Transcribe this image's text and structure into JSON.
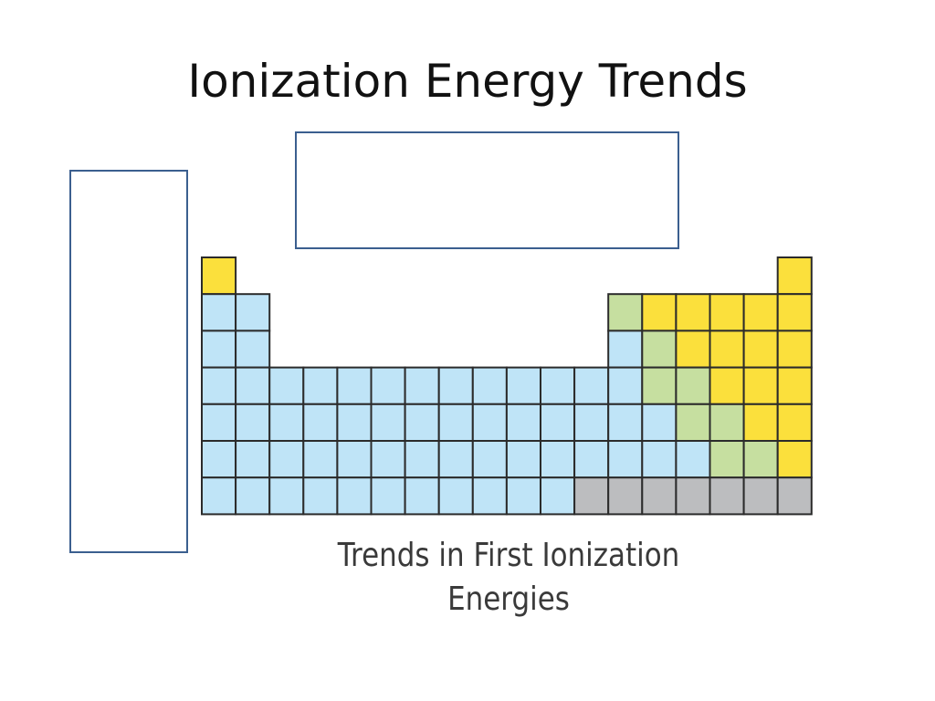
{
  "slide": {
    "title": "Ionization Energy Trends",
    "caption_line1": "Trends in First Ionization",
    "caption_line2": "Energies"
  },
  "colors": {
    "blue": "#bfe4f7",
    "green": "#c6dfa0",
    "yellow": "#fbe03c",
    "gray": "#bcbdbf",
    "cell_border": "#2b2b2b",
    "box_border": "#3b5f8f"
  },
  "periodic_table": {
    "legend": {
      "b": "blue",
      "g": "green",
      "y": "yellow",
      "x": "gray",
      ".": "empty"
    },
    "rows": [
      "y................y",
      "bb..........gyyyyy",
      "bb..........bgyyyy",
      "bbbbbbbbbbbbbggyyy",
      "bbbbbbbbbbbbbbggyy",
      "bbbbbbbbbbbbbbbggy",
      "bbbbbbbbbbbxxxxxxx"
    ]
  }
}
